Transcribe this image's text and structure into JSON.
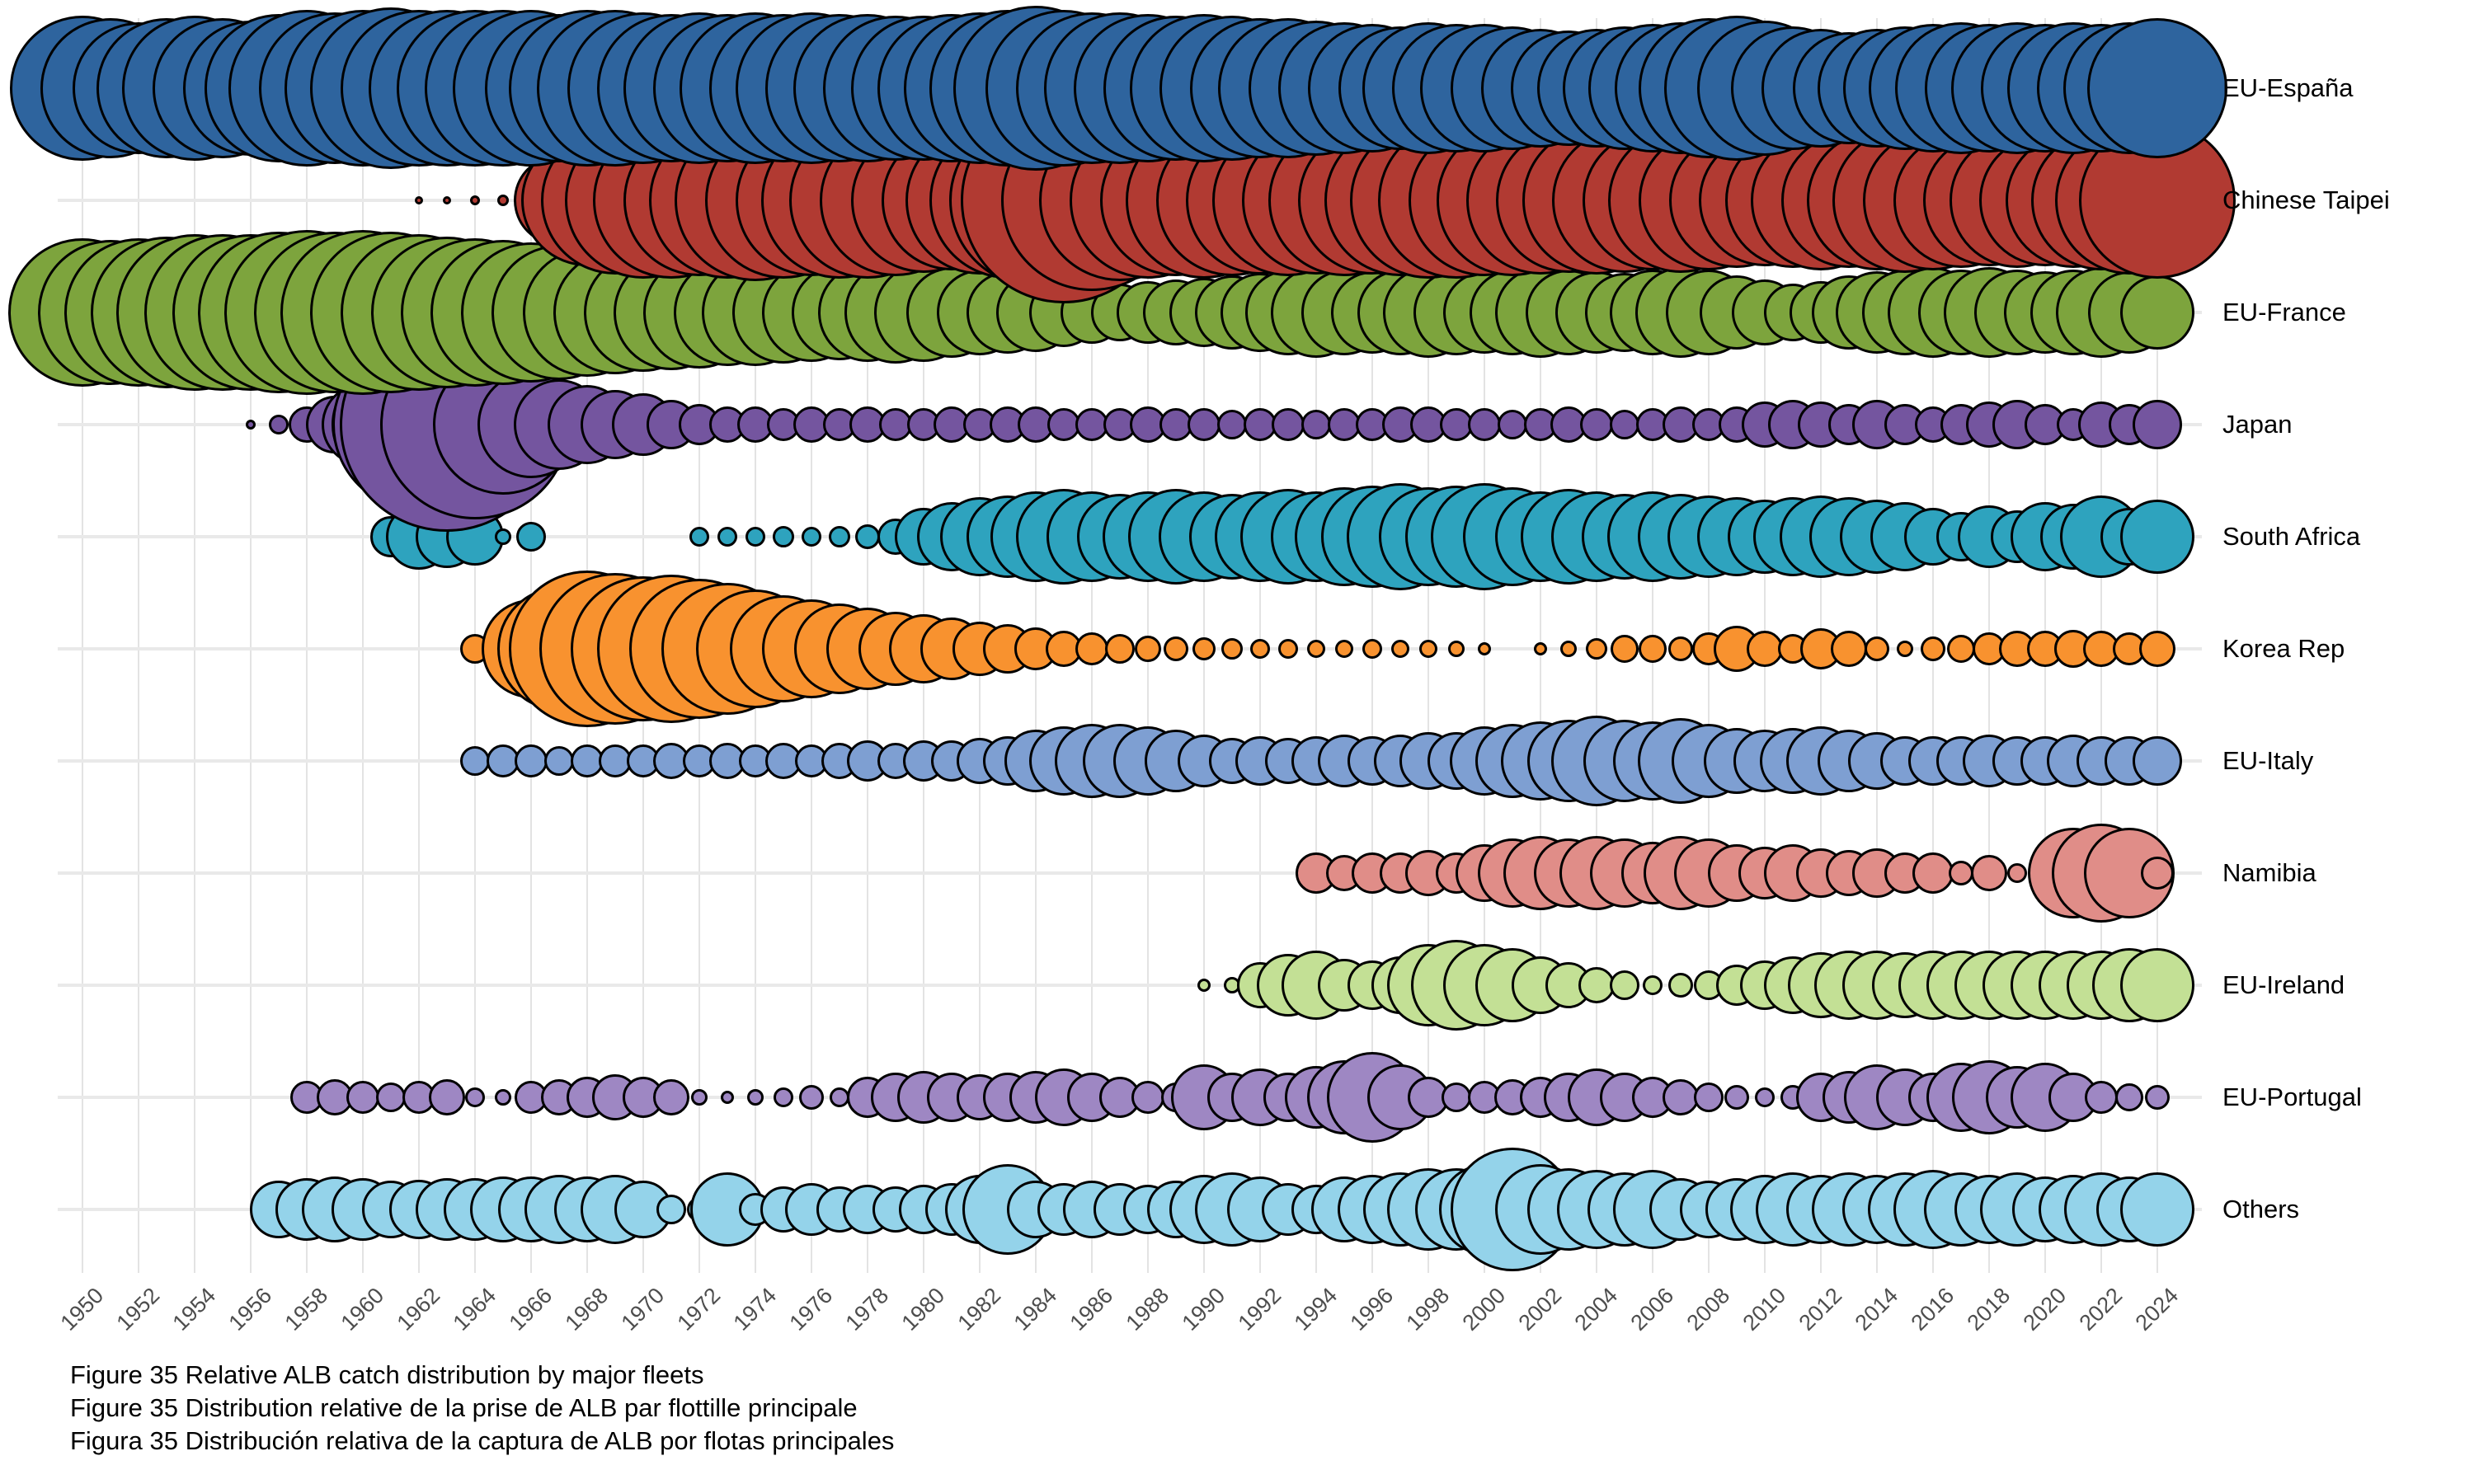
{
  "figure": {
    "captions": [
      "Figure 35 Relative ALB catch distribution by major fleets",
      "Figure 35 Distribution relative de la prise de ALB par flottille principale",
      "Figura 35 Distribución relativa de la captura de ALB por flotas principales"
    ]
  },
  "chart_data": {
    "type": "bubble",
    "description": "Relative ALB catch per year (bubble area ~ relative catch), one row per fleet",
    "x": {
      "start": 1950,
      "end": 2024,
      "tick_step": 2
    },
    "tick_labels": [
      "1950",
      "1952",
      "1954",
      "1956",
      "1958",
      "1960",
      "1962",
      "1964",
      "1966",
      "1968",
      "1970",
      "1972",
      "1974",
      "1976",
      "1978",
      "1980",
      "1982",
      "1984",
      "1986",
      "1988",
      "1990",
      "1992",
      "1994",
      "1996",
      "1998",
      "2000",
      "2002",
      "2004",
      "2006",
      "2008",
      "2010",
      "2012",
      "2014",
      "2016",
      "2018",
      "2020",
      "2022",
      "2024"
    ],
    "grid": "vertical-on",
    "legend_position": "right-row-labels",
    "fleets": [
      {
        "name": "EU-España",
        "color": "#2e649e",
        "start_year": 1950,
        "values": [
          0.88,
          0.85,
          0.8,
          0.85,
          0.88,
          0.85,
          0.82,
          0.9,
          0.95,
          0.92,
          0.95,
          0.98,
          0.95,
          0.95,
          0.95,
          0.95,
          0.95,
          0.9,
          0.95,
          0.95,
          0.92,
          0.9,
          0.92,
          0.9,
          0.92,
          0.9,
          0.92,
          0.9,
          0.9,
          0.88,
          0.88,
          0.9,
          0.92,
          0.95,
          1.0,
          0.95,
          0.92,
          0.92,
          0.9,
          0.88,
          0.9,
          0.88,
          0.85,
          0.85,
          0.82,
          0.8,
          0.78,
          0.75,
          0.8,
          0.78,
          0.78,
          0.75,
          0.72,
          0.7,
          0.72,
          0.75,
          0.78,
          0.8,
          0.85,
          0.88,
          0.82,
          0.75,
          0.72,
          0.68,
          0.72,
          0.75,
          0.78,
          0.8,
          0.78,
          0.8,
          0.78,
          0.8,
          0.78,
          0.8,
          0.85
        ]
      },
      {
        "name": "Chinese Taipei",
        "color": "#b13a32",
        "start_year": 1962,
        "values": [
          0.05,
          0.05,
          0.06,
          0.07,
          0.12,
          0.55,
          0.8,
          0.9,
          0.95,
          0.95,
          0.92,
          0.95,
          0.98,
          0.95,
          0.92,
          0.95,
          0.95,
          0.92,
          0.88,
          0.85,
          0.9,
          0.95,
          1.05,
          1.25,
          1.1,
          0.98,
          0.95,
          0.92,
          0.95,
          0.92,
          0.9,
          0.92,
          0.9,
          0.92,
          0.9,
          0.92,
          0.95,
          0.95,
          0.92,
          0.92,
          0.9,
          0.88,
          0.9,
          0.88,
          0.85,
          0.88,
          0.85,
          0.82,
          0.8,
          0.82,
          0.85,
          0.82,
          0.85,
          0.88,
          0.85,
          0.82,
          0.8,
          0.82,
          0.8,
          0.82,
          0.85,
          0.9,
          0.95
        ]
      },
      {
        "name": "EU-France",
        "color": "#7da43d",
        "start_year": 1950,
        "values": [
          0.9,
          0.88,
          0.9,
          0.92,
          0.95,
          0.95,
          0.95,
          0.98,
          1.0,
          0.98,
          1.0,
          0.98,
          0.95,
          0.92,
          0.9,
          0.88,
          0.85,
          0.82,
          0.78,
          0.75,
          0.72,
          0.7,
          0.68,
          0.65,
          0.65,
          0.62,
          0.6,
          0.58,
          0.6,
          0.62,
          0.6,
          0.55,
          0.52,
          0.5,
          0.48,
          0.42,
          0.38,
          0.35,
          0.38,
          0.4,
          0.42,
          0.45,
          0.48,
          0.52,
          0.55,
          0.52,
          0.5,
          0.52,
          0.55,
          0.52,
          0.5,
          0.52,
          0.55,
          0.52,
          0.5,
          0.48,
          0.52,
          0.55,
          0.52,
          0.45,
          0.4,
          0.35,
          0.38,
          0.45,
          0.5,
          0.52,
          0.55,
          0.52,
          0.55,
          0.52,
          0.5,
          0.52,
          0.55,
          0.5,
          0.45
        ]
      },
      {
        "name": "Japan",
        "color": "#74559f",
        "start_year": 1956,
        "values": [
          0.06,
          0.12,
          0.22,
          0.35,
          0.5,
          0.72,
          1.05,
          1.3,
          1.15,
          0.85,
          0.65,
          0.55,
          0.48,
          0.42,
          0.38,
          0.3,
          0.25,
          0.22,
          0.22,
          0.2,
          0.22,
          0.2,
          0.22,
          0.2,
          0.2,
          0.22,
          0.2,
          0.22,
          0.22,
          0.2,
          0.2,
          0.2,
          0.22,
          0.2,
          0.2,
          0.18,
          0.2,
          0.2,
          0.18,
          0.2,
          0.2,
          0.22,
          0.22,
          0.2,
          0.2,
          0.18,
          0.2,
          0.22,
          0.2,
          0.18,
          0.2,
          0.22,
          0.2,
          0.22,
          0.28,
          0.3,
          0.28,
          0.25,
          0.3,
          0.25,
          0.22,
          0.25,
          0.28,
          0.3,
          0.25,
          0.2,
          0.28,
          0.25,
          0.3
        ]
      },
      {
        "name": "South Africa",
        "color": "#2ea3be",
        "start_year": 1961,
        "values": [
          0.25,
          0.4,
          0.38,
          0.35,
          0.1,
          0.18,
          0,
          0,
          0,
          0,
          0,
          0.12,
          0.12,
          0.12,
          0.13,
          0.12,
          0.13,
          0.15,
          0.22,
          0.35,
          0.42,
          0.48,
          0.5,
          0.55,
          0.58,
          0.55,
          0.52,
          0.55,
          0.58,
          0.55,
          0.52,
          0.55,
          0.58,
          0.55,
          0.6,
          0.62,
          0.65,
          0.6,
          0.62,
          0.65,
          0.6,
          0.55,
          0.58,
          0.55,
          0.52,
          0.55,
          0.52,
          0.5,
          0.48,
          0.45,
          0.48,
          0.5,
          0.48,
          0.45,
          0.42,
          0.35,
          0.3,
          0.38,
          0.32,
          0.42,
          0.4,
          0.5,
          0.35,
          0.45
        ]
      },
      {
        "name": "Korea Rep",
        "color": "#f8922f",
        "start_year": 1964,
        "values": [
          0.18,
          0.12,
          0.6,
          0.75,
          0.95,
          0.92,
          0.88,
          0.9,
          0.85,
          0.8,
          0.72,
          0.65,
          0.6,
          0.55,
          0.5,
          0.45,
          0.42,
          0.38,
          0.33,
          0.3,
          0.26,
          0.22,
          0.2,
          0.18,
          0.16,
          0.15,
          0.14,
          0.13,
          0.12,
          0.12,
          0.11,
          0.11,
          0.12,
          0.11,
          0.11,
          0.1,
          0.08,
          0,
          0.08,
          0.1,
          0.13,
          0.17,
          0.17,
          0.15,
          0.2,
          0.28,
          0.22,
          0.18,
          0.25,
          0.22,
          0.15,
          0.1,
          0.15,
          0.17,
          0.2,
          0.22,
          0.22,
          0.23,
          0.22,
          0.2,
          0.22
        ]
      },
      {
        "name": "EU-Italy",
        "color": "#7e9fd2",
        "start_year": 1964,
        "values": [
          0.18,
          0.2,
          0.2,
          0.18,
          0.2,
          0.2,
          0.2,
          0.22,
          0.2,
          0.22,
          0.2,
          0.22,
          0.2,
          0.22,
          0.25,
          0.22,
          0.25,
          0.25,
          0.28,
          0.3,
          0.38,
          0.42,
          0.45,
          0.45,
          0.42,
          0.38,
          0.32,
          0.28,
          0.3,
          0.28,
          0.3,
          0.32,
          0.3,
          0.32,
          0.35,
          0.35,
          0.42,
          0.45,
          0.48,
          0.5,
          0.55,
          0.5,
          0.48,
          0.52,
          0.45,
          0.4,
          0.38,
          0.4,
          0.42,
          0.38,
          0.35,
          0.3,
          0.3,
          0.3,
          0.32,
          0.3,
          0.3,
          0.32,
          0.3,
          0.3,
          0.3
        ]
      },
      {
        "name": "Namibia",
        "color": "#e08d88",
        "start_year": 1994,
        "values": [
          0.25,
          0.22,
          0.25,
          0.25,
          0.28,
          0.25,
          0.35,
          0.42,
          0.45,
          0.42,
          0.45,
          0.42,
          0.38,
          0.45,
          0.42,
          0.35,
          0.32,
          0.35,
          0.3,
          0.28,
          0.3,
          0.25,
          0.25,
          0.15,
          0.22,
          0.12,
          0.18,
          0.55,
          0.6,
          0.55,
          0.2
        ]
      },
      {
        "name": "EU-Ireland",
        "color": "#c3e095",
        "start_year": 1990,
        "values": [
          0.08,
          0.1,
          0.28,
          0.38,
          0.42,
          0.32,
          0.3,
          0.35,
          0.5,
          0.55,
          0.5,
          0.45,
          0.35,
          0.28,
          0.22,
          0.18,
          0.12,
          0.15,
          0.18,
          0.25,
          0.3,
          0.35,
          0.4,
          0.42,
          0.42,
          0.4,
          0.42,
          0.42,
          0.42,
          0.42,
          0.42,
          0.42,
          0.42,
          0.45,
          0.45
        ]
      },
      {
        "name": "EU-Portugal",
        "color": "#9e87c3",
        "start_year": 1958,
        "values": [
          0.2,
          0.22,
          0.2,
          0.18,
          0.2,
          0.22,
          0.12,
          0.1,
          0.2,
          0.22,
          0.25,
          0.28,
          0.25,
          0.22,
          0.1,
          0.08,
          0.1,
          0.12,
          0.15,
          0.12,
          0.25,
          0.3,
          0.32,
          0.3,
          0.28,
          0.3,
          0.32,
          0.35,
          0.3,
          0.25,
          0.2,
          0.18,
          0.4,
          0.3,
          0.35,
          0.3,
          0.38,
          0.45,
          0.55,
          0.4,
          0.25,
          0.18,
          0.2,
          0.22,
          0.25,
          0.3,
          0.35,
          0.3,
          0.25,
          0.22,
          0.18,
          0.15,
          0.12,
          0.15,
          0.3,
          0.32,
          0.4,
          0.35,
          0.3,
          0.42,
          0.45,
          0.38,
          0.42,
          0.3,
          0.2,
          0.17,
          0.15
        ]
      },
      {
        "name": "Others",
        "color": "#94d3ea",
        "start_year": 1957,
        "values": [
          0.35,
          0.38,
          0.4,
          0.38,
          0.35,
          0.36,
          0.38,
          0.38,
          0.4,
          0.4,
          0.42,
          0.4,
          0.42,
          0.35,
          0.18,
          0.15,
          0.45,
          0.2,
          0.28,
          0.32,
          0.28,
          0.3,
          0.28,
          0.3,
          0.32,
          0.42,
          0.55,
          0.35,
          0.32,
          0.35,
          0.32,
          0.3,
          0.35,
          0.42,
          0.45,
          0.4,
          0.32,
          0.3,
          0.4,
          0.42,
          0.45,
          0.5,
          0.5,
          0.55,
          0.75,
          0.55,
          0.5,
          0.48,
          0.45,
          0.48,
          0.38,
          0.35,
          0.38,
          0.42,
          0.45,
          0.42,
          0.45,
          0.42,
          0.45,
          0.48,
          0.45,
          0.42,
          0.45,
          0.4,
          0.42,
          0.45,
          0.4,
          0.45
        ]
      }
    ],
    "style": {
      "grid_color": "#e3e3e3",
      "row_line_color": "#e9e9e9",
      "bubble_stroke": "#000000",
      "tick_text_color": "#4d4d4d",
      "label_text_color": "#000000",
      "background": "#ffffff"
    }
  }
}
